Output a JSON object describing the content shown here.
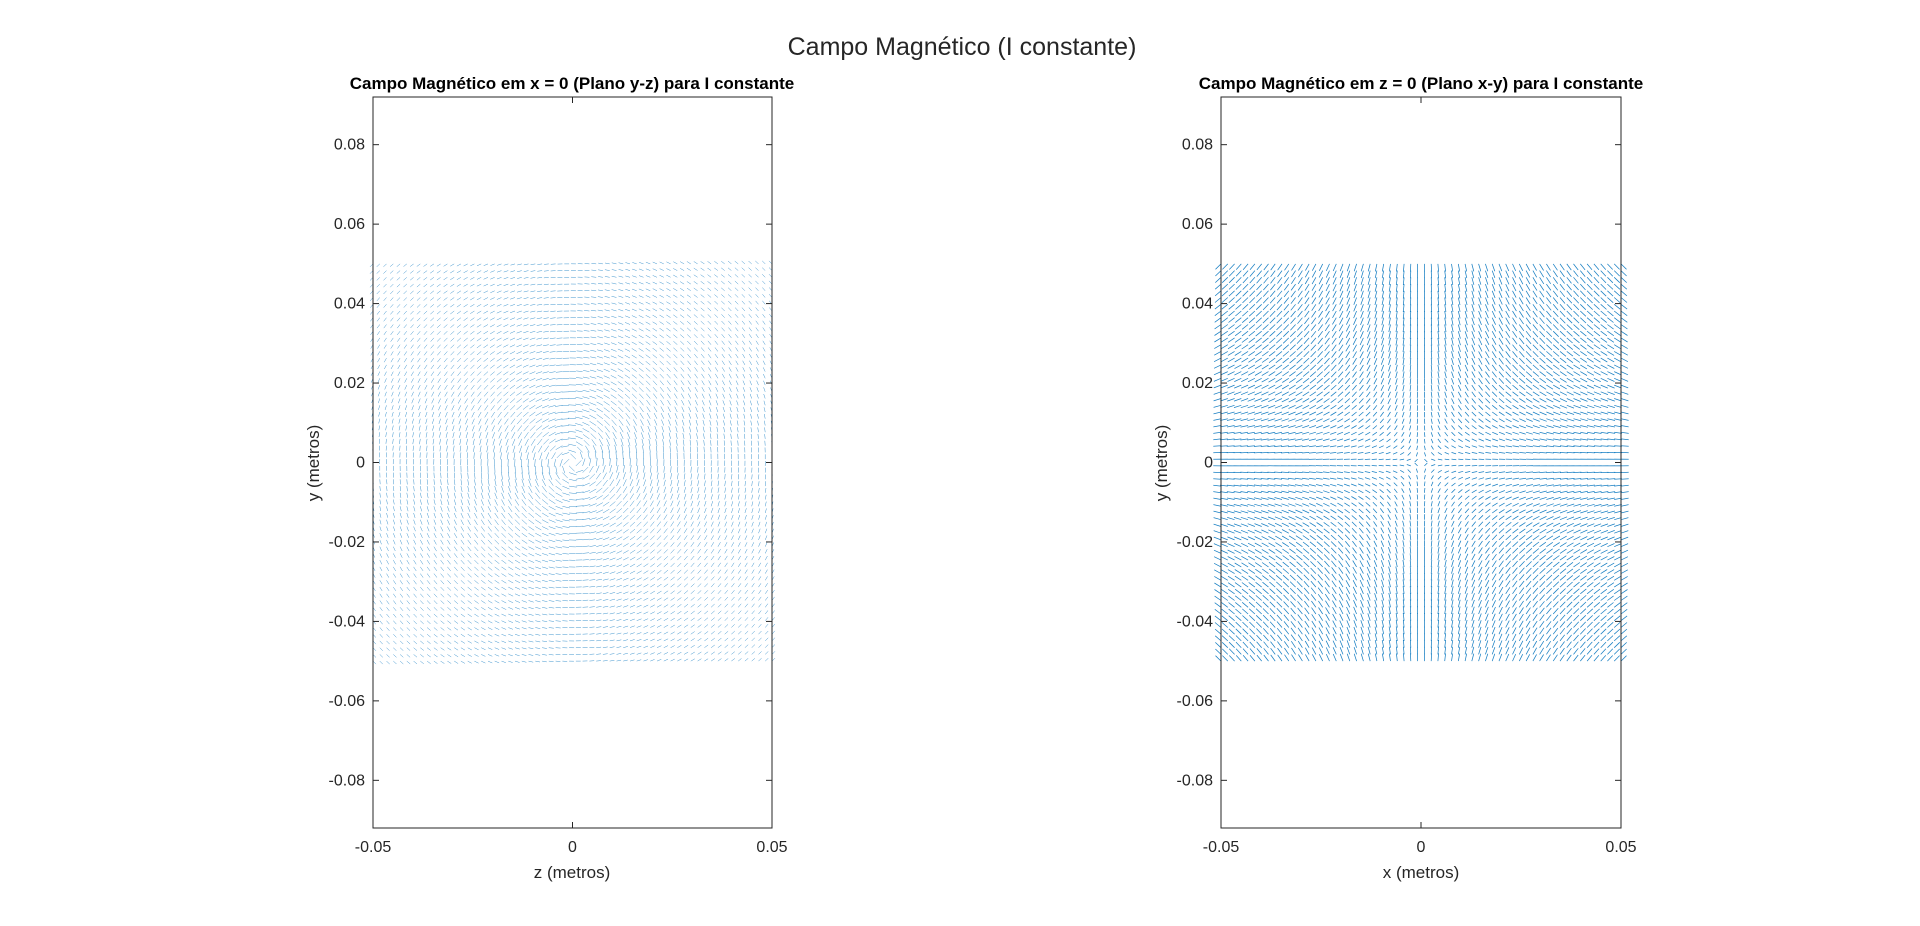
{
  "figure": {
    "title": "Campo Magnético (I constante)"
  },
  "chart_data": [
    {
      "type": "quiver",
      "title": "Campo Magnético em x = 0 (Plano y-z) para I constante",
      "xlabel": "z (metros)",
      "ylabel": "y (metros)",
      "xlim": [
        -0.05,
        0.05
      ],
      "ylim": [
        -0.092,
        0.092
      ],
      "xticks": [
        -0.05,
        0,
        0.05
      ],
      "xtick_labels": [
        "-0.05",
        "0",
        "0.05"
      ],
      "yticks": [
        -0.08,
        -0.06,
        -0.04,
        -0.02,
        0,
        0.02,
        0.04,
        0.06,
        0.08
      ],
      "ytick_labels": [
        "-0.08",
        "-0.06",
        "-0.04",
        "-0.02",
        "0",
        "0.02",
        "0.04",
        "0.06",
        "0.08"
      ],
      "grid": false,
      "field": {
        "x_range": [
          -0.05,
          0.05
        ],
        "y_range": [
          -0.05,
          0.05
        ],
        "grid_n": 60,
        "pattern": "circulation"
      },
      "color": "#0072BD"
    },
    {
      "type": "quiver",
      "title": "Campo Magnético em z = 0 (Plano x-y) para I constante",
      "xlabel": "x (metros)",
      "ylabel": "y (metros)",
      "xlim": [
        -0.05,
        0.05
      ],
      "ylim": [
        -0.092,
        0.092
      ],
      "xticks": [
        -0.05,
        0,
        0.05
      ],
      "xtick_labels": [
        "-0.05",
        "0",
        "0.05"
      ],
      "yticks": [
        -0.08,
        -0.06,
        -0.04,
        -0.02,
        0,
        0.02,
        0.04,
        0.06,
        0.08
      ],
      "ytick_labels": [
        "-0.08",
        "-0.06",
        "-0.04",
        "-0.02",
        "0",
        "0.02",
        "0.04",
        "0.06",
        "0.08"
      ],
      "grid": false,
      "field": {
        "x_range": [
          -0.05,
          0.05
        ],
        "y_range": [
          -0.05,
          0.05
        ],
        "grid_n": 60,
        "pattern": "quadrupole"
      },
      "color": "#0072BD"
    }
  ]
}
